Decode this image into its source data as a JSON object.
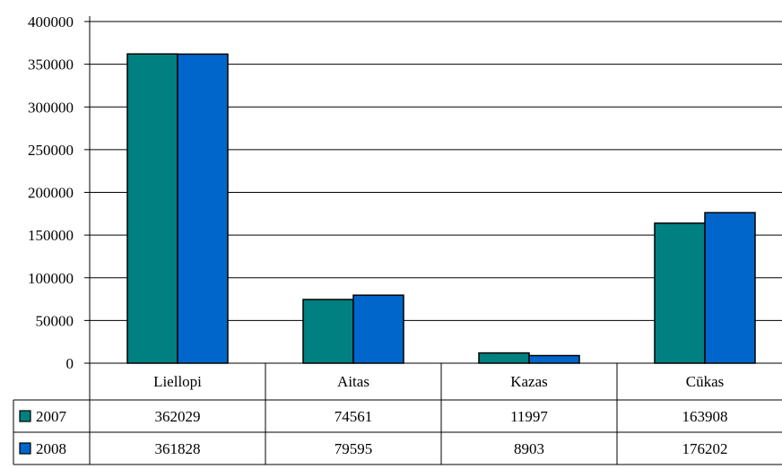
{
  "chart_data": {
    "type": "bar",
    "categories": [
      "Liellopi",
      "Aitas",
      "Kazas",
      "Cūkas"
    ],
    "series": [
      {
        "name": "2007",
        "color": "#008080",
        "values": [
          362029,
          74561,
          11997,
          163908
        ]
      },
      {
        "name": "2008",
        "color": "#0066cc",
        "values": [
          361828,
          79595,
          8903,
          176202
        ]
      }
    ],
    "ylim": [
      0,
      400000
    ],
    "yticks": [
      0,
      50000,
      100000,
      150000,
      200000,
      250000,
      300000,
      350000,
      400000
    ],
    "grid": true,
    "legend": "data-table",
    "data_table": true
  }
}
